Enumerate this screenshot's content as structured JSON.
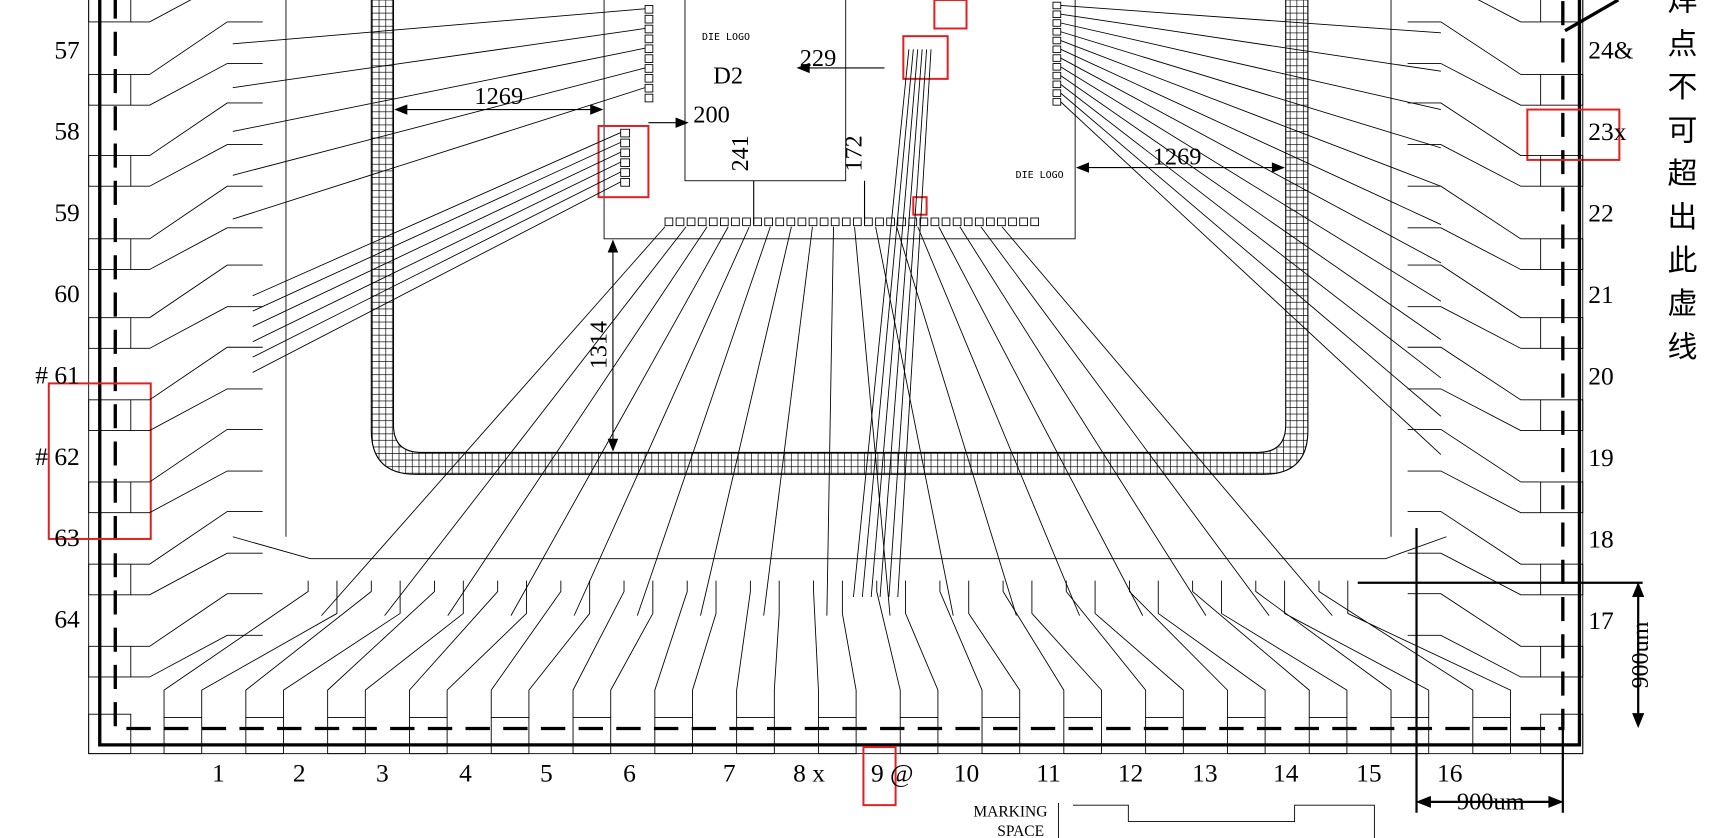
{
  "left_pins": [
    "57",
    "58",
    "59",
    "60",
    "# 61",
    "# 62",
    "63",
    "64"
  ],
  "bottom_pins": [
    "1",
    "2",
    "3",
    "4",
    "5",
    "6",
    "7",
    "8 x",
    "9 @",
    "10",
    "11",
    "12",
    "13",
    "14",
    "15",
    "16"
  ],
  "right_pins": [
    "24&",
    "23x",
    "22",
    "21",
    "20",
    "19",
    "18",
    "17"
  ],
  "dimensions": {
    "left_width": "1269",
    "right_width": "1269",
    "pad_offset": "200",
    "logo_offset": "229",
    "height_a": "241",
    "height_b": "172",
    "die_to_paddle": "1314",
    "lead_height": "900um",
    "lead_width": "900um"
  },
  "die": {
    "name": "D2",
    "logo_1": "DIE LOGO",
    "logo_2": "DIE LOGO"
  },
  "note": [
    "焊",
    "点",
    "不",
    "可",
    "超",
    "出",
    "此",
    "虚",
    "线"
  ],
  "marking": [
    "MARKING",
    "SPACE"
  ]
}
